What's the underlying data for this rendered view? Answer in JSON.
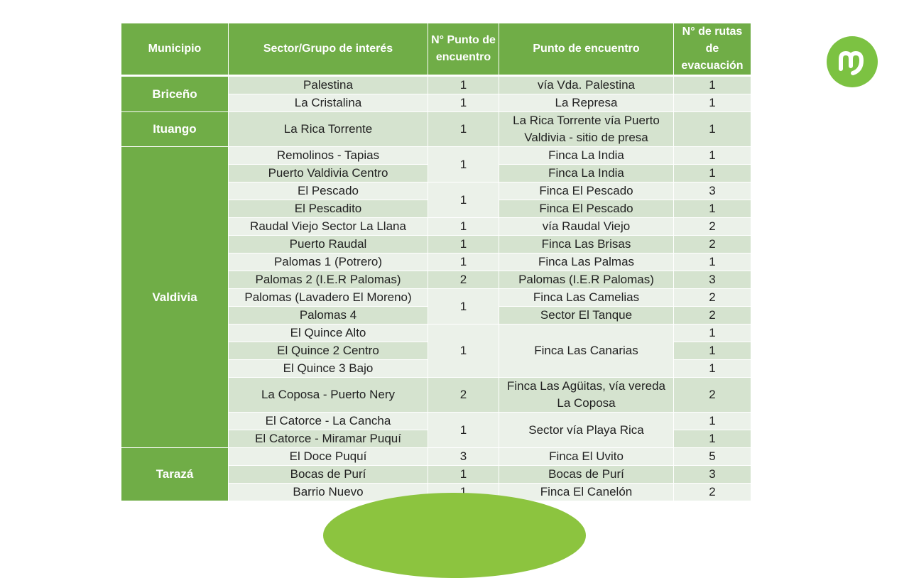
{
  "table": {
    "headers": [
      "Municipio",
      "Sector/Grupo de interés",
      "N° Punto de encuentro",
      "Punto de encuentro",
      "N° de rutas de evacuación"
    ],
    "rows": [
      {
        "shade": "dark",
        "cells": [
          {
            "text": "Briceño",
            "rowspan": 2,
            "muni": true
          },
          {
            "text": "Palestina"
          },
          {
            "text": "1"
          },
          {
            "text": "vía Vda. Palestina"
          },
          {
            "text": "1"
          }
        ]
      },
      {
        "shade": "light",
        "cells": [
          {
            "text": "La Cristalina"
          },
          {
            "text": "1"
          },
          {
            "text": "La Represa"
          },
          {
            "text": "1"
          }
        ]
      },
      {
        "shade": "dark",
        "tall": true,
        "cells": [
          {
            "text": "Ituango",
            "muni": true
          },
          {
            "text": "La Rica Torrente"
          },
          {
            "text": "1"
          },
          {
            "text": "La Rica Torrente vía Puerto Valdivia - sitio de presa"
          },
          {
            "text": "1"
          }
        ]
      },
      {
        "shade": "light",
        "cells": [
          {
            "text": "Valdivia",
            "rowspan": 16,
            "muni": true
          },
          {
            "text": "Remolinos - Tapias"
          },
          {
            "text": "1",
            "rowspan": 2
          },
          {
            "text": "Finca La India"
          },
          {
            "text": "1"
          }
        ]
      },
      {
        "shade": "dark",
        "cells": [
          {
            "text": "Puerto Valdivia Centro"
          },
          {
            "text": "Finca La India"
          },
          {
            "text": "1"
          }
        ]
      },
      {
        "shade": "light",
        "cells": [
          {
            "text": "El Pescado"
          },
          {
            "text": "1",
            "rowspan": 2
          },
          {
            "text": "Finca El Pescado"
          },
          {
            "text": "3"
          }
        ]
      },
      {
        "shade": "dark",
        "cells": [
          {
            "text": "El Pescadito"
          },
          {
            "text": "Finca El Pescado"
          },
          {
            "text": "1"
          }
        ]
      },
      {
        "shade": "light",
        "cells": [
          {
            "text": "Raudal Viejo Sector La Llana"
          },
          {
            "text": "1"
          },
          {
            "text": "vía Raudal Viejo"
          },
          {
            "text": "2"
          }
        ]
      },
      {
        "shade": "dark",
        "cells": [
          {
            "text": "Puerto Raudal"
          },
          {
            "text": "1"
          },
          {
            "text": "Finca Las Brisas"
          },
          {
            "text": "2"
          }
        ]
      },
      {
        "shade": "light",
        "cells": [
          {
            "text": "Palomas 1 (Potrero)"
          },
          {
            "text": "1"
          },
          {
            "text": "Finca Las Palmas"
          },
          {
            "text": "1"
          }
        ]
      },
      {
        "shade": "dark",
        "cells": [
          {
            "text": "Palomas 2 (I.E.R Palomas)"
          },
          {
            "text": "2"
          },
          {
            "text": "Palomas (I.E.R Palomas)"
          },
          {
            "text": "3"
          }
        ]
      },
      {
        "shade": "light",
        "cells": [
          {
            "text": "Palomas (Lavadero El Moreno)"
          },
          {
            "text": "1",
            "rowspan": 2
          },
          {
            "text": "Finca Las Camelias"
          },
          {
            "text": "2"
          }
        ]
      },
      {
        "shade": "dark",
        "cells": [
          {
            "text": "Palomas 4"
          },
          {
            "text": "Sector El Tanque"
          },
          {
            "text": "2"
          }
        ]
      },
      {
        "shade": "light",
        "cells": [
          {
            "text": "El Quince Alto"
          },
          {
            "text": "1",
            "rowspan": 3
          },
          {
            "text": "Finca Las Canarias",
            "rowspan": 3
          },
          {
            "text": "1"
          }
        ]
      },
      {
        "shade": "dark",
        "cells": [
          {
            "text": "El Quince 2 Centro"
          },
          {
            "text": "1"
          }
        ]
      },
      {
        "shade": "light",
        "cells": [
          {
            "text": "El Quince 3 Bajo"
          },
          {
            "text": "1"
          }
        ]
      },
      {
        "shade": "dark",
        "tall": true,
        "cells": [
          {
            "text": "La Coposa - Puerto Nery"
          },
          {
            "text": "2"
          },
          {
            "text": "Finca Las Agüitas, vía vereda La Coposa"
          },
          {
            "text": "2"
          }
        ]
      },
      {
        "shade": "light",
        "cells": [
          {
            "text": "El Catorce - La Cancha"
          },
          {
            "text": "1",
            "rowspan": 2
          },
          {
            "text": "Sector vía Playa Rica",
            "rowspan": 2
          },
          {
            "text": "1"
          }
        ]
      },
      {
        "shade": "dark",
        "cells": [
          {
            "text": "El Catorce - Miramar Puquí"
          },
          {
            "text": "1"
          }
        ]
      },
      {
        "shade": "light",
        "cells": [
          {
            "text": "Tarazá",
            "rowspan": 3,
            "muni": true
          },
          {
            "text": "El Doce Puquí"
          },
          {
            "text": "3"
          },
          {
            "text": "Finca El Uvito"
          },
          {
            "text": "5"
          }
        ]
      },
      {
        "shade": "dark",
        "cells": [
          {
            "text": "Bocas de Purí"
          },
          {
            "text": "1"
          },
          {
            "text": "Bocas de Purí"
          },
          {
            "text": "3"
          }
        ]
      },
      {
        "shade": "light",
        "cells": [
          {
            "text": "Barrio Nuevo"
          },
          {
            "text": "1"
          },
          {
            "text": "Finca El Canelón"
          },
          {
            "text": "2"
          }
        ]
      }
    ]
  },
  "colors": {
    "header": "#70ad47",
    "row_dark": "#d5e3cf",
    "row_light": "#ebf1e9",
    "logo": "#7cc242"
  },
  "logo": {
    "icon": "m-brand-logo-icon"
  }
}
